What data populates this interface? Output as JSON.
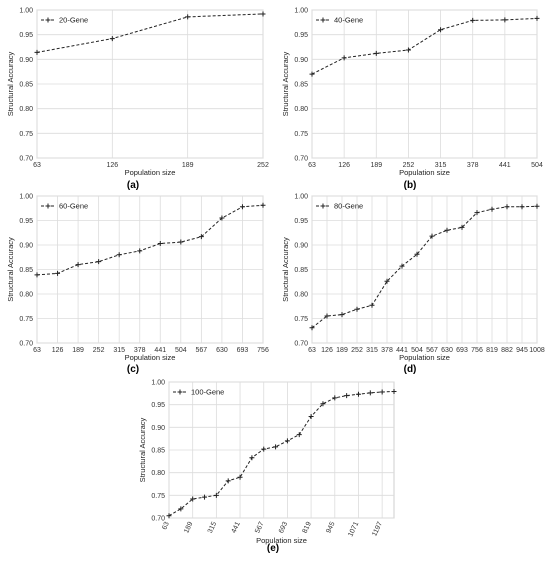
{
  "chart_data": [
    {
      "type": "line",
      "panel_label": "(a)",
      "xlabel": "Population size",
      "ylabel": "Structural Accuracy",
      "ylim": [
        0.7,
        1.0
      ],
      "yticks": [
        "0.70",
        "0.75",
        "0.80",
        "0.85",
        "0.90",
        "0.95",
        "1.00"
      ],
      "xticks": [
        "63",
        "126",
        "189",
        "252"
      ],
      "grid": true,
      "legend": "top-left",
      "series": [
        {
          "name": "20-Gene",
          "x": [
            63,
            126,
            189,
            252
          ],
          "values": [
            0.914,
            0.942,
            0.986,
            0.992
          ]
        }
      ]
    },
    {
      "type": "line",
      "panel_label": "(b)",
      "xlabel": "Population size",
      "ylabel": "Structural Accuracy",
      "ylim": [
        0.7,
        1.0
      ],
      "yticks": [
        "0.70",
        "0.75",
        "0.80",
        "0.85",
        "0.90",
        "0.95",
        "1.00"
      ],
      "xticks": [
        "63",
        "126",
        "189",
        "252",
        "315",
        "378",
        "441",
        "504"
      ],
      "grid": true,
      "legend": "top-left",
      "series": [
        {
          "name": "40-Gene",
          "x": [
            63,
            126,
            189,
            252,
            315,
            378,
            441,
            504
          ],
          "values": [
            0.87,
            0.903,
            0.912,
            0.919,
            0.96,
            0.979,
            0.98,
            0.983
          ]
        }
      ]
    },
    {
      "type": "line",
      "panel_label": "(c)",
      "xlabel": "Population size",
      "ylabel": "Structural Accuracy",
      "ylim": [
        0.7,
        1.0
      ],
      "yticks": [
        "0.70",
        "0.75",
        "0.80",
        "0.85",
        "0.90",
        "0.95",
        "1.00"
      ],
      "xticks": [
        "63",
        "126",
        "189",
        "252",
        "315",
        "378",
        "441",
        "504",
        "567",
        "630",
        "693",
        "756"
      ],
      "grid": true,
      "legend": "top-left",
      "series": [
        {
          "name": "60-Gene",
          "x": [
            63,
            126,
            189,
            252,
            315,
            378,
            441,
            504,
            567,
            630,
            693,
            756
          ],
          "values": [
            0.839,
            0.842,
            0.86,
            0.866,
            0.88,
            0.888,
            0.903,
            0.906,
            0.917,
            0.955,
            0.978,
            0.981
          ]
        }
      ]
    },
    {
      "type": "line",
      "panel_label": "(d)",
      "xlabel": "Population size",
      "ylabel": "Structural Accuracy",
      "ylim": [
        0.7,
        1.0
      ],
      "yticks": [
        "0.70",
        "0.75",
        "0.80",
        "0.85",
        "0.90",
        "0.95",
        "1.00"
      ],
      "xticks": [
        "63",
        "126",
        "189",
        "252",
        "315",
        "378",
        "441",
        "504",
        "567",
        "630",
        "693",
        "756",
        "819",
        "882",
        "945",
        "1008"
      ],
      "grid": true,
      "legend": "top-left",
      "series": [
        {
          "name": "80-Gene",
          "x": [
            63,
            126,
            189,
            252,
            315,
            378,
            441,
            504,
            567,
            630,
            693,
            756,
            819,
            882,
            945,
            1008
          ],
          "values": [
            0.731,
            0.755,
            0.758,
            0.769,
            0.777,
            0.826,
            0.857,
            0.881,
            0.918,
            0.93,
            0.936,
            0.966,
            0.973,
            0.978,
            0.978,
            0.979
          ]
        }
      ]
    },
    {
      "type": "line",
      "panel_label": "(e)",
      "xlabel": "Population size",
      "ylabel": "Structural Accuracy",
      "ylim": [
        0.7,
        1.0
      ],
      "yticks": [
        "0.70",
        "0.75",
        "0.80",
        "0.85",
        "0.90",
        "0.95",
        "1.00"
      ],
      "xticks": [
        "63",
        "189",
        "315",
        "441",
        "567",
        "693",
        "819",
        "945",
        "1071",
        "1197"
      ],
      "grid": true,
      "legend": "top-left",
      "series": [
        {
          "name": "100-Gene",
          "x": [
            63,
            126,
            189,
            252,
            315,
            378,
            441,
            504,
            567,
            630,
            693,
            756,
            819,
            882,
            945,
            1008,
            1071,
            1134,
            1197,
            1260
          ],
          "values": [
            0.705,
            0.72,
            0.742,
            0.746,
            0.75,
            0.782,
            0.79,
            0.833,
            0.852,
            0.857,
            0.87,
            0.884,
            0.924,
            0.952,
            0.965,
            0.97,
            0.973,
            0.976,
            0.978,
            0.979
          ]
        }
      ]
    }
  ]
}
